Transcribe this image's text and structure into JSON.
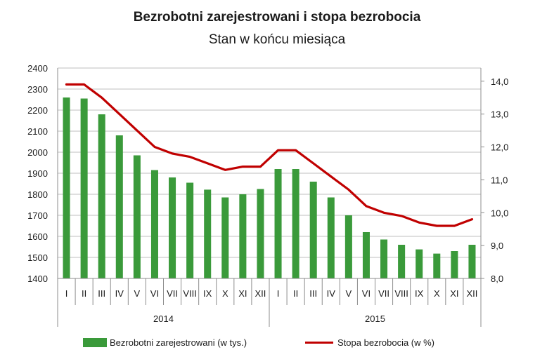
{
  "title": "Bezrobotni zarejestrowani i stopa bezrobocia",
  "subtitle": "Stan w końcu miesiąca",
  "colors": {
    "bar": "#3a9a3a",
    "line": "#c00000",
    "grid": "#bfbfbf",
    "axis": "#8c8c8c"
  },
  "chart_data": {
    "type": "bar",
    "title": "Bezrobotni zarejestrowani i stopa bezrobocia",
    "subtitle": "Stan w końcu miesiąca",
    "categories": [
      "I",
      "II",
      "III",
      "IV",
      "V",
      "VI",
      "VII",
      "VIII",
      "IX",
      "X",
      "XI",
      "XII",
      "I",
      "II",
      "III",
      "IV",
      "V",
      "VI",
      "VII",
      "VIII",
      "IX",
      "X",
      "XI",
      "XII"
    ],
    "year_groups": [
      {
        "label": "2014",
        "count": 12
      },
      {
        "label": "2015",
        "count": 12
      }
    ],
    "series": [
      {
        "name": "Bezrobotni zarejestrowani  (w tys.)",
        "type": "bar",
        "axis": "left",
        "values": [
          2260,
          2255,
          2180,
          2080,
          1985,
          1915,
          1880,
          1855,
          1822,
          1785,
          1800,
          1825,
          1920,
          1920,
          1860,
          1785,
          1700,
          1620,
          1585,
          1560,
          1538,
          1518,
          1530,
          1560
        ]
      },
      {
        "name": "Stopa bezrobocia  (w %)",
        "type": "line",
        "axis": "right",
        "values": [
          13.9,
          13.9,
          13.5,
          13.0,
          12.5,
          12.0,
          11.8,
          11.7,
          11.5,
          11.3,
          11.4,
          11.4,
          11.9,
          11.9,
          11.5,
          11.1,
          10.7,
          10.2,
          10.0,
          9.9,
          9.7,
          9.6,
          9.6,
          9.8
        ]
      }
    ],
    "y_left": {
      "min": 1400,
      "max": 2400,
      "ticks": [
        "1400",
        "1500",
        "1600",
        "1700",
        "1800",
        "1900",
        "2000",
        "2100",
        "2200",
        "2300",
        "2400"
      ]
    },
    "y_right": {
      "min": 8.0,
      "max": 14.4,
      "ticks": [
        "8,0",
        "9,0",
        "10,0",
        "11,0",
        "12,0",
        "13,0",
        "14,0"
      ]
    },
    "grid": true,
    "legend_position": "bottom"
  }
}
